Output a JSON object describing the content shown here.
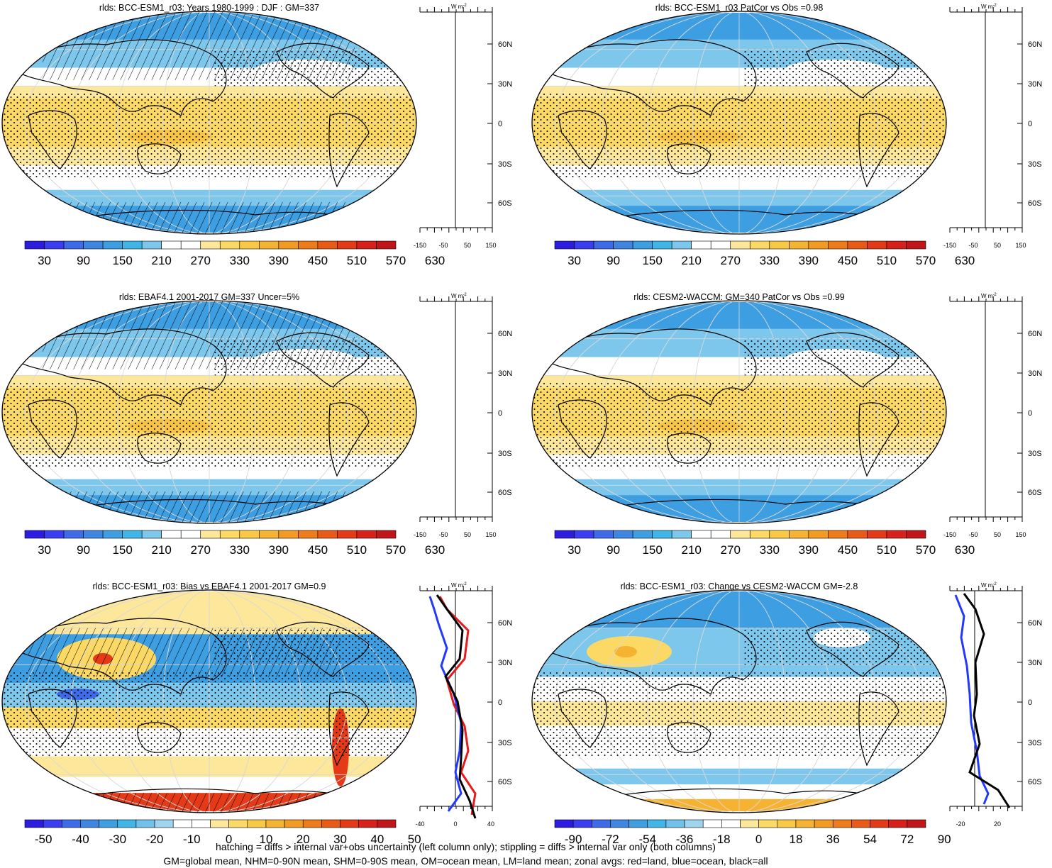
{
  "panels": [
    {
      "title": "rlds: BCC-ESM1_r03: Years 1980-1999 : DJF : GM=337",
      "kind": "abs",
      "hatch": "top",
      "ticks": [
        "30",
        "90",
        "150",
        "210",
        "270",
        "330",
        "390",
        "450",
        "510",
        "570",
        "630"
      ],
      "zonal_ticks": [
        "-150",
        "-50",
        "50",
        "150"
      ],
      "zonal_curves": false
    },
    {
      "title": "rlds: BCC-ESM1_r03 PatCor vs Obs =0.98",
      "kind": "abs",
      "hatch": "none",
      "ticks": [
        "30",
        "90",
        "150",
        "210",
        "270",
        "330",
        "390",
        "450",
        "510",
        "570",
        "630"
      ],
      "zonal_ticks": [
        "-150",
        "-50",
        "50",
        "150"
      ],
      "zonal_curves": false
    },
    {
      "title": "rlds: EBAF4.1 2001-2017 GM=337 Uncer=5%",
      "kind": "abs",
      "hatch": "top",
      "ticks": [
        "30",
        "90",
        "150",
        "210",
        "270",
        "330",
        "390",
        "450",
        "510",
        "570",
        "630"
      ],
      "zonal_ticks": [
        "-150",
        "-50",
        "50",
        "150"
      ],
      "zonal_curves": false
    },
    {
      "title": "rlds: CESM2-WACCM: GM=340 PatCor vs Obs =0.99",
      "kind": "abs",
      "hatch": "none",
      "ticks": [
        "30",
        "90",
        "150",
        "210",
        "270",
        "330",
        "390",
        "450",
        "510",
        "570",
        "630"
      ],
      "zonal_ticks": [
        "-150",
        "-50",
        "50",
        "150"
      ],
      "zonal_curves": false
    },
    {
      "title": "rlds: BCC-ESM1_r03: Bias vs EBAF4.1 2001-2017 GM=0.9",
      "kind": "bias",
      "hatch": "bias",
      "ticks": [
        "-50",
        "-40",
        "-30",
        "-20",
        "-10",
        "0",
        "10",
        "20",
        "30",
        "40",
        "50"
      ],
      "zonal_ticks": [
        "-40",
        "0",
        "40"
      ],
      "zonal_curves": true
    },
    {
      "title": "rlds: BCC-ESM1_r03: Change vs CESM2-WACCM GM=-2.8",
      "kind": "change",
      "hatch": "none",
      "ticks": [
        "-90",
        "-72",
        "-54",
        "-36",
        "-18",
        "0",
        "18",
        "36",
        "54",
        "72",
        "90"
      ],
      "zonal_ticks": [
        "-20",
        "20"
      ],
      "zonal_curves": true
    }
  ],
  "zonal_unit": "W m",
  "zonal_unit_sup": "-2",
  "lat_labels": [
    "60N",
    "30N",
    "0",
    "30S",
    "60S"
  ],
  "colorbar_abs": [
    "#2c1ce0",
    "#3b3ef0",
    "#3f6ae8",
    "#3f86e3",
    "#3d9ee2",
    "#40b6e8",
    "#7dc7ec",
    "#ffffff",
    "#ffffff",
    "#fde79a",
    "#fbd964",
    "#f9c845",
    "#f6b332",
    "#f39a22",
    "#ef7c1a",
    "#ea5a17",
    "#e43a18",
    "#d8211a",
    "#c0161a"
  ],
  "colorbar_div": [
    "#2c1ce0",
    "#3b3ef0",
    "#3f6ae8",
    "#3f86e3",
    "#3d9ee2",
    "#40b6e8",
    "#6fc1ea",
    "#9fd4ef",
    "#ffffff",
    "#ffffff",
    "#fde79a",
    "#fbd964",
    "#f9c845",
    "#f6b332",
    "#f39a22",
    "#ef7c1a",
    "#ea5a17",
    "#e43a18",
    "#d8211a",
    "#c0161a"
  ],
  "footer": {
    "line1": "hatching = diffs > internal var+obs uncertainty (left column only); stippling = diffs > internal var only (both columns)",
    "line2": "GM=global mean, NHM=0-90N mean, SHM=0-90S mean, OM=ocean mean, LM=land mean; zonal avgs: red=land, blue=ocean, black=all"
  }
}
